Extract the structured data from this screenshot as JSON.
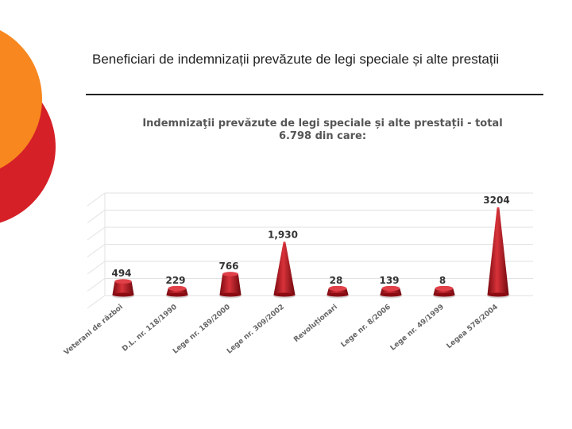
{
  "slide": {
    "title": "Beneficiari de indemnizații prevăzute de legi speciale și alte prestații"
  },
  "colors": {
    "accent_orange": "#F7871E",
    "accent_red": "#D62027",
    "bar_red": "#B5121B"
  },
  "chart_data": {
    "type": "bar",
    "title_line1": "Indemnizaţii prevăzute de legi speciale și alte prestații - total",
    "title_line2": "6.798 din care:",
    "categories": [
      "Veterani de război",
      "D.L. nr. 118/1990",
      "Lege nr. 189/2000",
      "Lege nr. 309/2002",
      "Revoluționari",
      "Lege nr. 8/2006",
      "Lege nr. 49/1999",
      "Legea 578/2004"
    ],
    "values": [
      494,
      229,
      766,
      1930,
      28,
      139,
      8,
      3204
    ],
    "value_labels": [
      "494",
      "229",
      "766",
      "1,930",
      "28",
      "139",
      "8",
      "3204"
    ],
    "grid": true,
    "legend": "none"
  }
}
